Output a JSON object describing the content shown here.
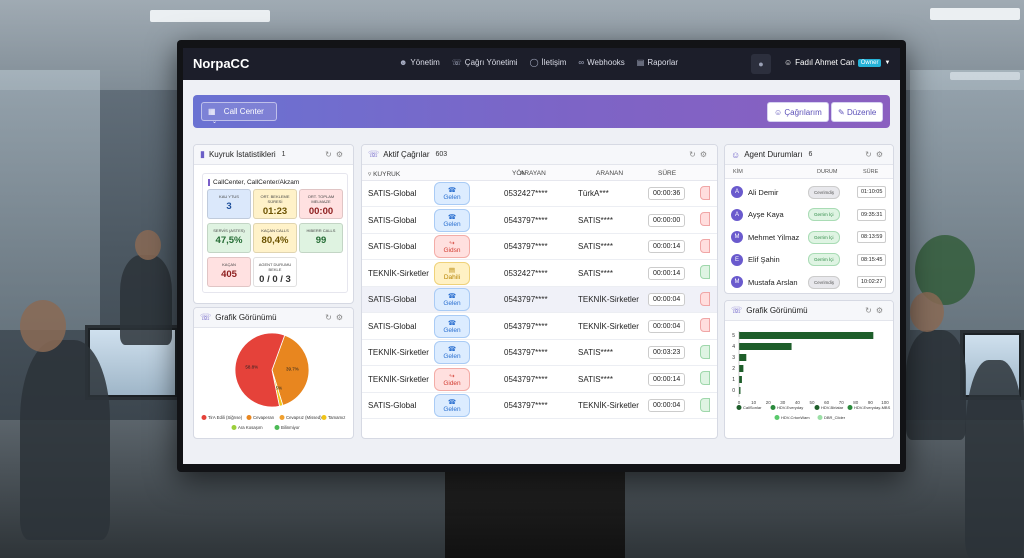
{
  "nav": {
    "brand": "NorpaCC",
    "links": [
      "Yönetim",
      "Çağrı Yönetimi",
      "İletişim",
      "Webhooks",
      "Raporlar"
    ],
    "user_name": "Fadıl Ahmet Can",
    "user_role": "Owner"
  },
  "header": {
    "select_value": "Call Center",
    "calls_button": "Çağrılarım",
    "edit_button": "Düzenle"
  },
  "queue_panel": {
    "title": "Kuyruk İstatistikleri",
    "count": "1",
    "queue_name": "CallCenter, CallCenter/Akzam",
    "tiles": [
      {
        "label": "KAU YTUS",
        "value": "3",
        "color": "#dbe8fb",
        "text": "#1d4f9c"
      },
      {
        "label": "ORT. BEKLEME SÜRESİ",
        "value": "01:23",
        "color": "#fff2c9",
        "text": "#6b5200"
      },
      {
        "label": "ORT. TOPLAM MELMAZE",
        "value": "00:00",
        "color": "#ffe1e1",
        "text": "#8d1d1d"
      },
      {
        "label": "SERVİS (ASTES)",
        "value": "47,5%",
        "color": "#dff3e1",
        "text": "#236b33"
      },
      {
        "label": "KAÇAN CALLS",
        "value": "80,4%",
        "color": "#fff2c9",
        "text": "#6b5200"
      },
      {
        "label": "HIBERR CALLS",
        "value": "99",
        "color": "#dff3e1",
        "text": "#236b33"
      },
      {
        "label": "KAÇAN",
        "value": "405",
        "color": "#ffe1e1",
        "text": "#8d1d1d"
      },
      {
        "label": "AGENT DURUMU BEKLE",
        "value": "0 / 0 / 3",
        "color": "#ffffff",
        "text": "#333333"
      }
    ]
  },
  "chart_left": {
    "title": "Grafik Görünümü",
    "slice_labels": [
      "39.7%",
      "1.5%",
      "58.8%"
    ],
    "legend": [
      "TirA Edili (Siğrıse)",
      "Cevaperan",
      "Cevapsız (Missed)",
      "Tamamız",
      "Ara Kosaşım",
      "Bilinmiyor"
    ]
  },
  "calls_panel": {
    "title": "Aktif Çağrılar",
    "count": "603",
    "headers": [
      "KUYRUK",
      "YÖN",
      "ARAYAN",
      "ARANAN",
      "SÜRE"
    ],
    "rows": [
      {
        "queue": "SATIS-Global",
        "dir": "Gelen",
        "caller": "0532427****",
        "callee": "TürkA***",
        "dur": "00:00:36"
      },
      {
        "queue": "SATIS-Global",
        "dir": "Gelen",
        "caller": "0543797****",
        "callee": "SATIS****",
        "dur": "00:00:00"
      },
      {
        "queue": "SATIS-Global",
        "dir": "Gidsn",
        "caller": "0543797****",
        "callee": "SATIS****",
        "dur": "00:00:14"
      },
      {
        "queue": "TEKNİK-Sirketler",
        "dir": "Dahili",
        "caller": "0532427****",
        "callee": "SATIS****",
        "dur": "00:00:14"
      },
      {
        "queue": "SATIS-Global",
        "dir": "Gelen",
        "caller": "0543797****",
        "callee": "TEKNİK-Sirketler",
        "dur": "00:00:04"
      },
      {
        "queue": "SATIS-Global",
        "dir": "Gelen",
        "caller": "0543797****",
        "callee": "TEKNİK-Sirketler",
        "dur": "00:00:04"
      },
      {
        "queue": "TEKNİK-Sirketler",
        "dir": "Gelen",
        "caller": "0543797****",
        "callee": "SATIS****",
        "dur": "00:03:23"
      },
      {
        "queue": "TEKNİK-Sirketler",
        "dir": "Giden",
        "caller": "0543797****",
        "callee": "SATIS****",
        "dur": "00:00:14"
      },
      {
        "queue": "SATIS-Global",
        "dir": "Gelen",
        "caller": "0543797****",
        "callee": "TEKNİK-Sirketler",
        "dur": "00:00:04"
      }
    ]
  },
  "agents_panel": {
    "title": "Agent Durumları",
    "count": "6",
    "headers": [
      "KİM",
      "DURUM",
      "SÜRE"
    ],
    "rows": [
      {
        "initial": "A",
        "name": "Ali Demir",
        "status": "Cevrimdiş",
        "time": "01:10:05",
        "online": false
      },
      {
        "initial": "A",
        "name": "Ayşe Kaya",
        "status": "Gerrim İçi",
        "time": "09:35:31",
        "online": true
      },
      {
        "initial": "M",
        "name": "Mehmet Yilmaz",
        "status": "Gerrim İçi",
        "time": "08:13:59",
        "online": true
      },
      {
        "initial": "E",
        "name": "Elif Şahin",
        "status": "Gerrim İçi",
        "time": "08:15:45",
        "online": true
      },
      {
        "initial": "M",
        "name": "Mustafa Arslan",
        "status": "Cevrimdiş",
        "time": "10:02:27",
        "online": false
      }
    ]
  },
  "chart_right": {
    "title": "Grafik Görünümü",
    "legend": [
      "CallSonlar",
      "HDV-Everyday",
      "HDV-Birlatar",
      "HDV-Everyday-MBS",
      "HDV-CrtonWam",
      "DBR_Clider"
    ]
  },
  "chart_data": [
    {
      "type": "pie",
      "labels": [
        "Cevaperan",
        "Cevapsız (Missed)",
        "TirA Edili (Siğrıse)"
      ],
      "values": [
        39.7,
        1.5,
        58.8
      ],
      "colors": [
        "#e8861f",
        "#f0c419",
        "#e5423a"
      ]
    },
    {
      "type": "bar",
      "orientation": "horizontal",
      "categories": [
        "5",
        "4",
        "3",
        "2",
        "1",
        "0"
      ],
      "values": [
        92,
        36,
        5,
        3,
        2,
        1
      ],
      "xlim": [
        0,
        100
      ],
      "xticks": [
        0,
        10,
        20,
        30,
        40,
        50,
        60,
        70,
        80,
        90,
        100
      ],
      "color": "#1e5e2a"
    }
  ]
}
